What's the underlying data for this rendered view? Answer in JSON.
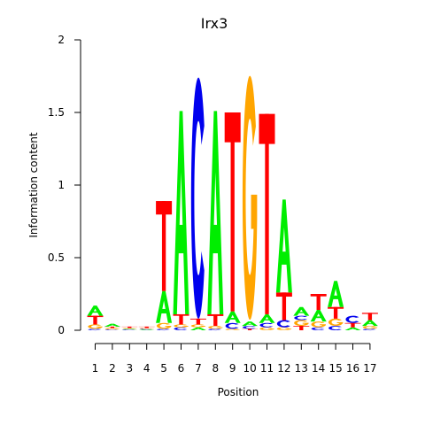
{
  "chart_data": {
    "type": "sequence-logo",
    "title": "Irx3",
    "xlabel": "Position",
    "ylabel": "Information content",
    "ylim": [
      0,
      2
    ],
    "yticks": [
      "0",
      "0.5",
      "1",
      "1.5",
      "2"
    ],
    "xticks": [
      "1",
      "2",
      "3",
      "4",
      "5",
      "6",
      "7",
      "8",
      "9",
      "10",
      "11",
      "12",
      "13",
      "14",
      "15",
      "16",
      "17"
    ],
    "colors": {
      "A": "#00ee00",
      "C": "#0000ee",
      "G": "#ffa500",
      "T": "#ff0000"
    },
    "positions": [
      [
        [
          "C",
          0.01
        ],
        [
          "G",
          0.03
        ],
        [
          "T",
          0.06
        ],
        [
          "A",
          0.07
        ]
      ],
      [
        [
          "C",
          0.005
        ],
        [
          "G",
          0.01
        ],
        [
          "T",
          0.01
        ],
        [
          "A",
          0.02
        ]
      ],
      [
        [
          "C",
          0.005
        ],
        [
          "A",
          0.005
        ],
        [
          "G",
          0.005
        ],
        [
          "T",
          0.01
        ]
      ],
      [
        [
          "A",
          0.005
        ],
        [
          "C",
          0.005
        ],
        [
          "G",
          0.005
        ],
        [
          "T",
          0.01
        ]
      ],
      [
        [
          "C",
          0.01
        ],
        [
          "G",
          0.04
        ],
        [
          "A",
          0.22
        ],
        [
          "T",
          0.62
        ]
      ],
      [
        [
          "C",
          0.02
        ],
        [
          "G",
          0.02
        ],
        [
          "T",
          0.07
        ],
        [
          "A",
          1.4
        ]
      ],
      [
        [
          "A",
          0.02
        ],
        [
          "G",
          0.02
        ],
        [
          "T",
          0.04
        ],
        [
          "C",
          1.66
        ]
      ],
      [
        [
          "C",
          0.01
        ],
        [
          "G",
          0.02
        ],
        [
          "T",
          0.08
        ],
        [
          "A",
          1.4
        ]
      ],
      [
        [
          "G",
          0.01
        ],
        [
          "C",
          0.04
        ],
        [
          "A",
          0.08
        ],
        [
          "T",
          1.37
        ]
      ],
      [
        [
          "T",
          0.01
        ],
        [
          "C",
          0.02
        ],
        [
          "A",
          0.03
        ],
        [
          "G",
          1.68
        ]
      ],
      [
        [
          "G",
          0.02
        ],
        [
          "C",
          0.03
        ],
        [
          "A",
          0.06
        ],
        [
          "T",
          1.38
        ]
      ],
      [
        [
          "G",
          0.02
        ],
        [
          "C",
          0.05
        ],
        [
          "T",
          0.19
        ],
        [
          "A",
          0.64
        ]
      ],
      [
        [
          "T",
          0.03
        ],
        [
          "G",
          0.04
        ],
        [
          "C",
          0.03
        ],
        [
          "A",
          0.06
        ]
      ],
      [
        [
          "C",
          0.02
        ],
        [
          "G",
          0.04
        ],
        [
          "A",
          0.08
        ],
        [
          "T",
          0.11
        ]
      ],
      [
        [
          "C",
          0.03
        ],
        [
          "G",
          0.05
        ],
        [
          "T",
          0.08
        ],
        [
          "A",
          0.18
        ]
      ],
      [
        [
          "A",
          0.02
        ],
        [
          "T",
          0.03
        ],
        [
          "C",
          0.05
        ]
      ],
      [
        [
          "C",
          0.01
        ],
        [
          "G",
          0.02
        ],
        [
          "A",
          0.04
        ],
        [
          "T",
          0.05
        ]
      ]
    ]
  }
}
